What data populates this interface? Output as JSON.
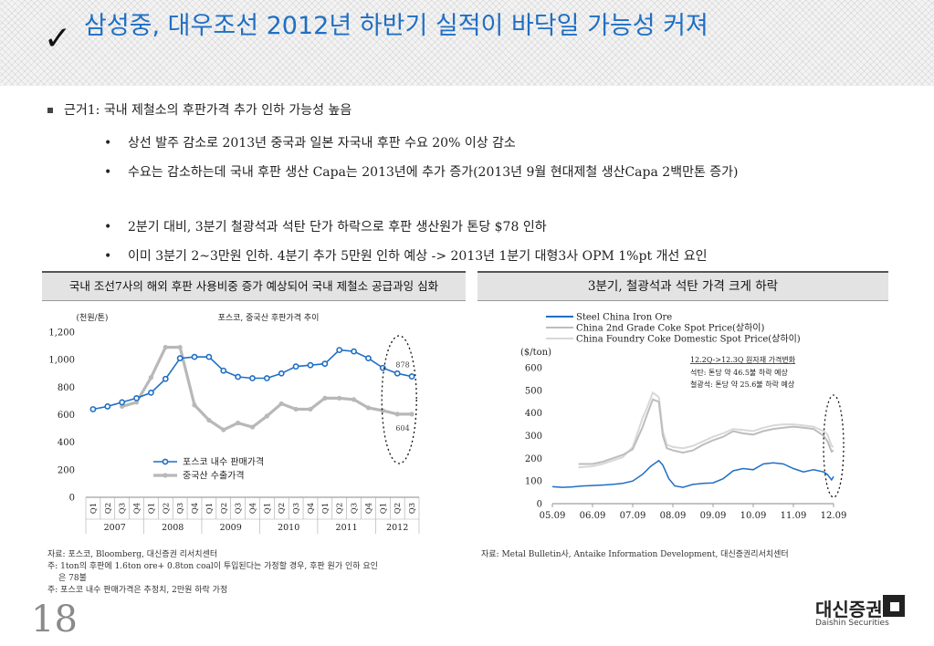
{
  "header": {
    "title": "삼성중, 대우조선 2012년 하반기 실적이 바닥일 가능성 커져"
  },
  "bullets": {
    "main": "근거1: 국내 제철소의 후판가격 추가 인하 가능성 높음",
    "subs": [
      "상선 발주 감소로 2013년 중국과 일본 자국내 후판 수요 20% 이상 감소",
      "수요는 감소하는데 국내 후판 생산 Capa는 2013년에 추가 증가(2013년 9월 현대제철 생산Capa 2백만톤 증가)",
      "2분기 대비, 3분기 철광석과 석탄 단가 하락으로 후판 생산원가 톤당 $78 인하",
      "이미 3분기 2~3만원 인하. 4분기 추가 5만원 인하 예상 -> 2013년 1분기 대형3사 OPM 1%pt 개선 요인"
    ]
  },
  "left_panel": {
    "header": "국내 조선7사의 해외 후판 사용비중 증가 예상되어 국내 제철소 공급과잉 심화",
    "source": [
      "자료: 포스코, Bloomberg, 대신증권 리서치센터",
      "주: 1ton의 후판에 1.6ton ore+ 0.8ton coal이 투입된다는 가정할 경우, 후판 원가 인하 요인",
      "은 78불",
      "주: 포스코 내수 판매가격은 추정치, 2만원 하락 가정"
    ]
  },
  "right_panel": {
    "header": "3분기, 철광석과 석탄 가격 크게 하락",
    "source": "자료: Metal Bulletin사, Antaike Information Development, 대신증권리서치센터"
  },
  "chart_data": [
    {
      "type": "line",
      "title": "포스코, 중국산 후판가격 추이",
      "ylabel": "(천원/톤)",
      "ylim": [
        0,
        1200
      ],
      "yticks": [
        "0",
        "200",
        "400",
        "600",
        "800",
        "1,000",
        "1,200"
      ],
      "categories": [
        "Q1",
        "Q2",
        "Q3",
        "Q4",
        "Q1",
        "Q2",
        "Q3",
        "Q4",
        "Q1",
        "Q2",
        "Q3",
        "Q4",
        "Q1",
        "Q2",
        "Q3",
        "Q4",
        "Q1",
        "Q2",
        "Q3",
        "Q4",
        "Q1",
        "Q2",
        "Q3"
      ],
      "years": [
        "2007",
        "2008",
        "2009",
        "2010",
        "2011",
        "2012"
      ],
      "series": [
        {
          "name": "포스코 내수 판매가격",
          "color": "#1f6fc4",
          "values": [
            640,
            660,
            690,
            720,
            760,
            860,
            1010,
            1020,
            1020,
            920,
            875,
            865,
            865,
            900,
            950,
            960,
            970,
            1070,
            1060,
            1010,
            940,
            900,
            878
          ]
        },
        {
          "name": "중국산 수출가격",
          "color": "#b8b8b8",
          "values": [
            null,
            null,
            660,
            690,
            870,
            1090,
            1090,
            670,
            560,
            490,
            540,
            510,
            590,
            680,
            640,
            640,
            720,
            720,
            710,
            650,
            630,
            604,
            604
          ]
        }
      ],
      "annotations": [
        "878",
        "604"
      ],
      "grid": false,
      "legend": "bottom-left"
    },
    {
      "type": "line",
      "ylabel": "($/ton)",
      "ylim": [
        0,
        600
      ],
      "yticks": [
        "0",
        "100",
        "200",
        "300",
        "400",
        "500",
        "600"
      ],
      "xticks": [
        "05.09",
        "06.09",
        "07.09",
        "08.09",
        "09.09",
        "10.09",
        "11.09",
        "12.09"
      ],
      "series": [
        {
          "name": "Steel China Iron Ore",
          "color": "#1f6fc4",
          "x": [
            2005.75,
            2006.0,
            2006.25,
            2006.5,
            2006.75,
            2007.0,
            2007.25,
            2007.5,
            2007.75,
            2008.0,
            2008.2,
            2008.4,
            2008.5,
            2008.65,
            2008.8,
            2009.0,
            2009.25,
            2009.5,
            2009.75,
            2010.0,
            2010.25,
            2010.5,
            2010.75,
            2011.0,
            2011.25,
            2011.5,
            2011.75,
            2012.0,
            2012.25,
            2012.5,
            2012.6,
            2012.7,
            2012.75
          ],
          "y": [
            75,
            72,
            74,
            78,
            80,
            82,
            85,
            90,
            100,
            130,
            165,
            190,
            170,
            110,
            78,
            72,
            85,
            90,
            92,
            110,
            145,
            155,
            150,
            175,
            180,
            175,
            155,
            140,
            150,
            140,
            128,
            105,
            120
          ]
        },
        {
          "name": "China 2nd Grade Coke Spot Price(상하이)",
          "color": "#bdbdbd",
          "x": [
            2006.4,
            2006.75,
            2007.0,
            2007.25,
            2007.5,
            2007.75,
            2008.0,
            2008.1,
            2008.25,
            2008.4,
            2008.5,
            2008.6,
            2008.75,
            2009.0,
            2009.25,
            2009.5,
            2009.75,
            2010.0,
            2010.25,
            2010.5,
            2010.75,
            2011.0,
            2011.25,
            2011.5,
            2011.75,
            2012.0,
            2012.25,
            2012.5,
            2012.6,
            2012.7,
            2012.75
          ],
          "y": [
            175,
            175,
            185,
            200,
            215,
            240,
            340,
            390,
            460,
            450,
            300,
            245,
            235,
            225,
            235,
            260,
            280,
            295,
            320,
            310,
            305,
            320,
            330,
            335,
            340,
            335,
            330,
            300,
            275,
            230,
            235
          ]
        },
        {
          "name": "China Foundry Coke Domestic Spot Price(상하이)",
          "color": "#d8d8d8",
          "x": [
            2006.4,
            2006.75,
            2007.0,
            2007.25,
            2007.5,
            2007.75,
            2008.0,
            2008.1,
            2008.25,
            2008.4,
            2008.5,
            2008.6,
            2008.75,
            2009.0,
            2009.25,
            2009.5,
            2009.75,
            2010.0,
            2010.25,
            2010.5,
            2010.75,
            2011.0,
            2011.25,
            2011.5,
            2011.75,
            2012.0,
            2012.25,
            2012.5,
            2012.6,
            2012.7,
            2012.75
          ],
          "y": [
            160,
            165,
            175,
            190,
            205,
            250,
            380,
            420,
            490,
            470,
            320,
            260,
            250,
            245,
            255,
            275,
            295,
            310,
            330,
            325,
            320,
            335,
            345,
            350,
            350,
            345,
            340,
            320,
            305,
            255,
            250
          ]
        }
      ],
      "annotations": [
        "12.2Q->12.3Q 원자재 가격변화",
        "석탄: 톤당 약 46.5불 하락 예상",
        "철광석: 톤당  약 25.6불 하락 예상"
      ],
      "grid": false,
      "legend": "top"
    }
  ]
}
